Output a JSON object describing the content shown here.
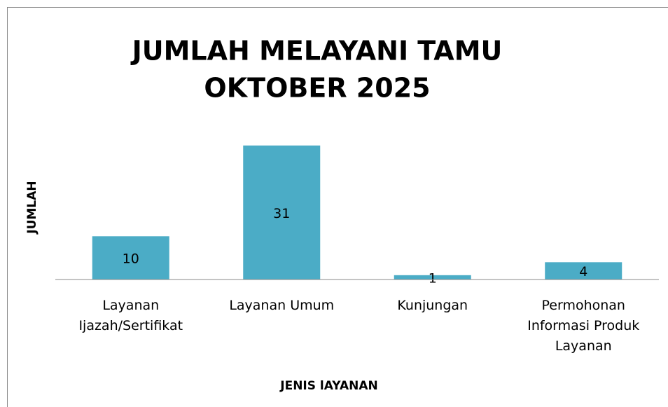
{
  "chart_data": {
    "type": "bar",
    "title": [
      "JUMLAH MELAYANI TAMU",
      "OKTOBER 2025"
    ],
    "x_label": "JENIS lAYANAN",
    "y_label": "JUMLAH",
    "categories": [
      "Layanan Ijazah/Sertifikat",
      "Layanan Umum",
      "Kunjungan",
      "Permohonan Informasi Produk Layanan"
    ],
    "values": [
      10,
      31,
      1,
      4
    ],
    "color": "#4bacc6",
    "ylim": [
      0,
      35
    ]
  }
}
